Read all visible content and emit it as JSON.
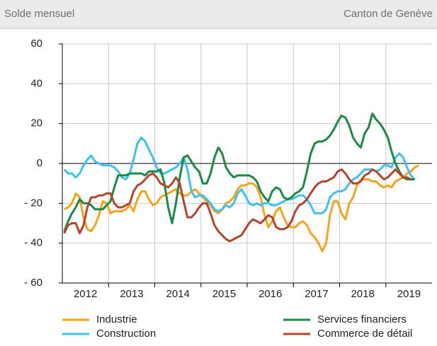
{
  "header": {
    "left": "Solde mensuel",
    "right": "Canton de Genève"
  },
  "chart_data": {
    "type": "line",
    "categories": [
      null,
      null,
      null,
      null,
      null,
      null,
      "2012",
      null,
      null,
      null,
      null,
      null,
      null,
      null,
      null,
      null,
      null,
      null,
      "2013",
      null,
      null,
      null,
      null,
      null,
      null,
      null,
      null,
      null,
      null,
      null,
      "2014",
      null,
      null,
      null,
      null,
      null,
      null,
      null,
      null,
      null,
      null,
      null,
      "2015",
      null,
      null,
      null,
      null,
      null,
      null,
      null,
      null,
      null,
      null,
      null,
      "2016",
      null,
      null,
      null,
      null,
      null,
      null,
      null,
      null,
      null,
      null,
      null,
      "2017",
      null,
      null,
      null,
      null,
      null,
      null,
      null,
      null,
      null,
      null,
      null,
      "2018",
      null,
      null,
      null,
      null,
      null,
      null,
      null,
      null,
      null,
      null,
      null,
      "2019",
      null,
      null,
      null,
      null,
      null
    ],
    "ylim": [
      -60,
      60
    ],
    "yticks": [
      {
        "value": -60,
        "label": "- 60"
      },
      {
        "value": -40,
        "label": "- 40"
      },
      {
        "value": -20,
        "label": "- 20"
      },
      0,
      20,
      40,
      60
    ],
    "grid": true,
    "series": [
      {
        "name": "Industrie",
        "color": "#f7a21b",
        "values": [
          -23,
          -22,
          -20,
          -15,
          -17,
          -27,
          -33,
          -34,
          -31,
          -26,
          -19,
          -20,
          -25,
          -24,
          -24,
          -24,
          -23,
          -21,
          -24,
          -18,
          -14,
          -14,
          -18,
          -21,
          -20,
          -17,
          -16,
          -15,
          -14,
          -13,
          -15,
          -16,
          -16,
          -14,
          -13,
          -15,
          -17,
          -19,
          -21,
          -24,
          -25,
          -23,
          -20,
          -19,
          -17,
          -13,
          -11,
          -11,
          -10,
          -10,
          -12,
          -17,
          -26,
          -32,
          -29,
          -24,
          -22,
          -27,
          -31,
          -32,
          -32,
          -30,
          -29,
          -31,
          -35,
          -37,
          -40,
          -44,
          -40,
          -26,
          -19,
          -19,
          -25,
          -28,
          -20,
          -17,
          -11,
          -8,
          -8,
          -8,
          -9,
          -9,
          -11,
          -12,
          -11,
          -12,
          -9,
          -8,
          -7,
          -5,
          -4,
          -2,
          -1,
          null,
          null,
          null
        ]
      },
      {
        "name": "Construction",
        "color": "#3ec1f0",
        "values": [
          -3,
          -5,
          -5,
          -7,
          -5,
          -1,
          2,
          4,
          1,
          0,
          -1,
          -1,
          -1,
          -2,
          -4,
          -7,
          -8,
          -5,
          2,
          10,
          13,
          11,
          7,
          3,
          -2,
          -5,
          -5,
          -4,
          -3,
          -2,
          0,
          3,
          -3,
          -14,
          -17,
          -16,
          -16,
          -18,
          -20,
          -23,
          -24,
          -23,
          -21,
          -22,
          -20,
          -15,
          -13,
          -16,
          -20,
          -21,
          -20,
          -21,
          -20,
          -20,
          -21,
          -21,
          -20,
          -19,
          -18,
          -18,
          -17,
          -16,
          -16,
          -18,
          -21,
          -25,
          -25,
          -25,
          -23,
          -17,
          -15,
          -14,
          -14,
          -13,
          -10,
          -8,
          -7,
          -5,
          -3,
          -3,
          -3,
          -4,
          -3,
          -1,
          -1,
          -2,
          3,
          5,
          3,
          -2,
          -6,
          -8,
          null,
          null,
          null,
          null
        ]
      },
      {
        "name": "Services financiers",
        "color": "#1a8a44",
        "values": [
          -34,
          -29,
          -25,
          -22,
          -18,
          -20,
          -20,
          -21,
          -23,
          -23,
          -23,
          -21,
          -19,
          -12,
          -6,
          -6,
          -6,
          -5,
          -5,
          -5,
          -5,
          -6,
          -4,
          -4,
          -4,
          -3,
          -10,
          -22,
          -30,
          -20,
          -7,
          3,
          4,
          1,
          -2,
          -4,
          -10,
          -10,
          -5,
          3,
          8,
          5,
          -2,
          -5,
          -7,
          -6,
          -6,
          -6,
          -6,
          -7,
          -9,
          -14,
          -17,
          -19,
          -14,
          -12,
          -13,
          -17,
          -18,
          -17,
          -15,
          -14,
          -12,
          -4,
          5,
          10,
          11,
          11,
          12,
          14,
          17,
          21,
          24,
          23,
          19,
          13,
          10,
          8,
          15,
          18,
          25,
          22,
          20,
          17,
          13,
          6,
          0,
          -4,
          -7,
          -8,
          -8,
          -8,
          null,
          null,
          null,
          null
        ]
      },
      {
        "name": "Commerce de détail",
        "color": "#b2452b",
        "values": [
          -35,
          -31,
          -30,
          -30,
          -35,
          -31,
          -22,
          -17,
          -17,
          -16,
          -16,
          -15,
          -15,
          -20,
          -22,
          -22,
          -21,
          -20,
          -14,
          -11,
          -10,
          -8,
          -6,
          -5,
          -7,
          -10,
          -11,
          -12,
          -10,
          -7,
          -10,
          -19,
          -27,
          -27,
          -25,
          -22,
          -20,
          -20,
          -25,
          -31,
          -34,
          -36,
          -38,
          -39,
          -38,
          -37,
          -36,
          -33,
          -30,
          -28,
          -29,
          -30,
          -28,
          -26,
          -27,
          -32,
          -33,
          -33,
          -32,
          -29,
          -24,
          -21,
          -20,
          -18,
          -15,
          -12,
          -10,
          -9,
          -9,
          -8,
          -7,
          -4,
          -3,
          -5,
          -8,
          -10,
          -10,
          -9,
          -6,
          -5,
          -3,
          -4,
          -6,
          -8,
          -7,
          -5,
          -3,
          -5,
          -7,
          -7,
          -8,
          null,
          null,
          null,
          null,
          null
        ]
      }
    ]
  }
}
